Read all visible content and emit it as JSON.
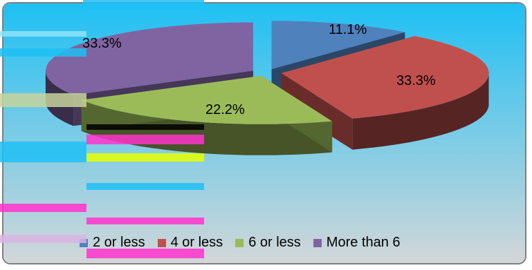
{
  "chart_data": {
    "type": "pie",
    "style": "3d-exploded",
    "title": "",
    "categories": [
      "2 or less",
      "4 or less",
      "6 or less",
      "More than 6"
    ],
    "values": [
      11.1,
      33.3,
      22.2,
      33.3
    ],
    "value_labels": [
      "11.1%",
      "33.3%",
      "22.2%",
      "33.3%"
    ],
    "colors": [
      "#4f81bd",
      "#c0504d",
      "#9bbb59",
      "#8064a2"
    ],
    "legend_position": "bottom",
    "grid": false
  },
  "background": {
    "top": "#1ec0f4",
    "bottom": "#d5d7d8"
  }
}
